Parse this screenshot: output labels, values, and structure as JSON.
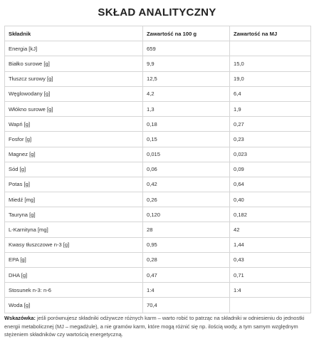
{
  "title": "SKŁAD ANALITYCZNY",
  "table": {
    "header": [
      "Składnik",
      "Zawartość na 100 g",
      "Zawartość na MJ"
    ],
    "rows": [
      [
        "Energia [kJ]",
        "659",
        null
      ],
      [
        "Białko surowe [g]",
        "9,9",
        "15,0"
      ],
      [
        "Tłuszcz surowy [g]",
        "12,5",
        "19,0"
      ],
      [
        "Węglowodany [g]",
        "4,2",
        "6,4"
      ],
      [
        "Włókno surowe [g]",
        "1,3",
        "1,9"
      ],
      [
        "Wapń [g]",
        "0,18",
        "0,27"
      ],
      [
        "Fosfor [g]",
        "0,15",
        "0,23"
      ],
      [
        "Magnez [g]",
        "0,015",
        "0,023"
      ],
      [
        "Sód [g]",
        "0,06",
        "0,09"
      ],
      [
        "Potas [g]",
        "0,42",
        "0,64"
      ],
      [
        "Miedź [mg]",
        "0,26",
        "0,40"
      ],
      [
        "Tauryna [g]",
        "0,120",
        "0,182"
      ],
      [
        "L-Karnityna [mg]",
        "28",
        "42"
      ],
      [
        "Kwasy tłuszczowe n-3 [g]",
        "0,95",
        "1,44"
      ],
      [
        "EPA [g]",
        "0,28",
        "0,43"
      ],
      [
        "DHA [g]",
        "0,47",
        "0,71"
      ],
      [
        "Stosunek n-3: n-6",
        "1:4",
        "1:4"
      ],
      [
        "Woda [g]",
        "70,4",
        null
      ]
    ]
  },
  "note": {
    "label": "Wskazówka:",
    "text": "jeśli porównujesz składniki odżywcze różnych karm – warto robić to patrząc na składniki w odniesieniu do jednostki energii metabolicznej (MJ – megadżule), a nie gramów karm, które mogą różnić się np. ilością wody, a tym samym względnym stężeniem składników czy wartością energetyczną."
  }
}
